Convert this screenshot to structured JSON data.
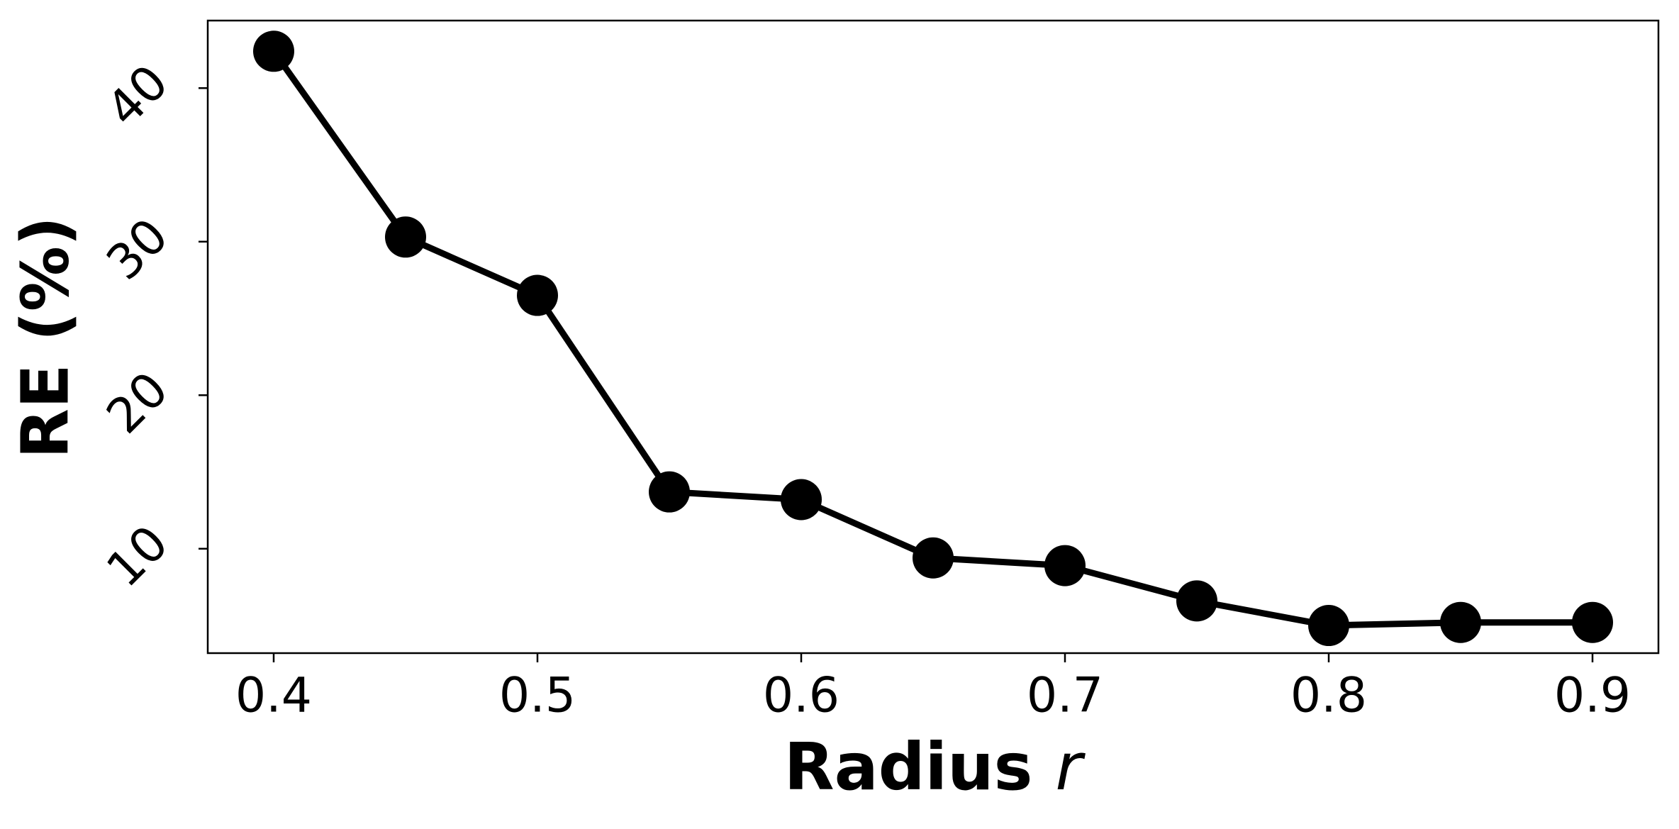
{
  "chart_data": {
    "type": "line",
    "xlabel": "Radius r",
    "ylabel": "RE (%)",
    "x": [
      0.4,
      0.45,
      0.5,
      0.55,
      0.6,
      0.65,
      0.7,
      0.75,
      0.8,
      0.85,
      0.9
    ],
    "series": [
      {
        "color": "#000000",
        "values": [
          42.4,
          30.3,
          26.5,
          13.7,
          13.2,
          9.4,
          8.9,
          6.6,
          5.0,
          5.2,
          5.2
        ]
      }
    ],
    "xlim": [
      0.375,
      0.925
    ],
    "ylim": [
      3.2,
      44.4
    ],
    "xticks": [
      0.4,
      0.5,
      0.6,
      0.7,
      0.8,
      0.9
    ],
    "yticks": [
      10,
      20,
      30,
      40
    ],
    "grid": false
  }
}
